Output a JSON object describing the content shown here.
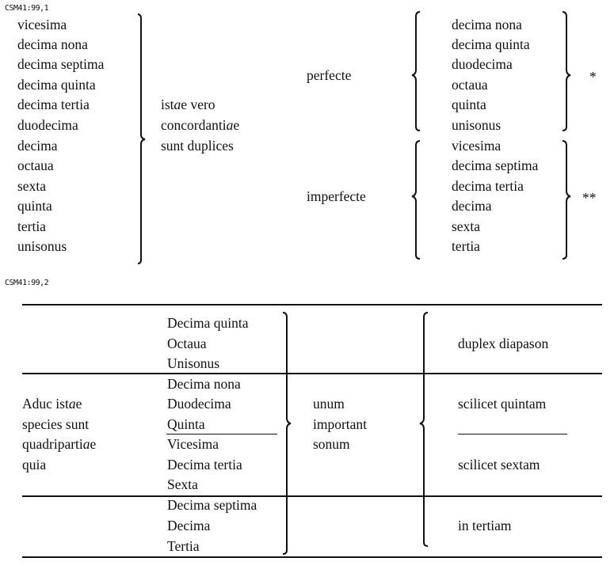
{
  "section1": {
    "label": "CSM41:99,1",
    "left_list": [
      "vicesima",
      "decima nona",
      "decima septima",
      "decima quinta",
      "decima tertia",
      "duodecima",
      "decima",
      "octaua",
      "sexta",
      "quinta",
      "tertia",
      "unisonus"
    ],
    "middle_text": [
      "istae vero",
      "concordantiae",
      "sunt duplices"
    ],
    "perfecte_label": "perfecte",
    "imperfecte_label": "imperfecte",
    "perfect_list": [
      "decima nona",
      "decima quinta",
      "duodecima",
      "octaua",
      "quinta",
      "unisonus"
    ],
    "imperfect_list": [
      "vicesima",
      "decima septima",
      "decima tertia",
      "decima",
      "sexta",
      "tertia"
    ],
    "perfect_mark": "*",
    "imperfect_mark": "**"
  },
  "section2": {
    "label": "CSM41:99,2",
    "left_text": [
      "Aduc istae",
      "species sunt",
      "quadripartiae",
      "quia"
    ],
    "group1": [
      "Decima quinta",
      "Octaua",
      "Unisonus"
    ],
    "group2": [
      "Decima nona",
      "Duodecima",
      "Quinta",
      "Vicesima",
      "Decima tertia",
      "Sexta"
    ],
    "group3": [
      "Decima septima",
      "Decima",
      "Tertia"
    ],
    "middle_text": [
      "unum",
      "important",
      "sonum"
    ],
    "right_text": {
      "duplex": "duplex diapason",
      "quintam": "scilicet quintam",
      "sextam": "scilicet sextam",
      "tertiam": "in tertiam"
    }
  }
}
